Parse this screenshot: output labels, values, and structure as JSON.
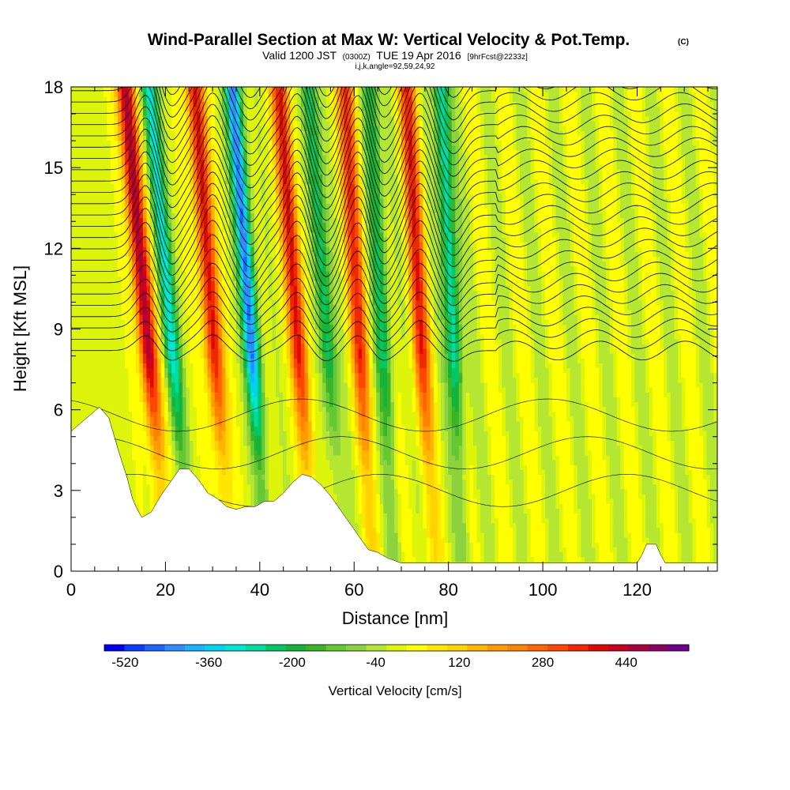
{
  "chart_data": {
    "type": "heatmap",
    "title": "Wind-Parallel Section at Max W: Vertical Velocity & Pot.Temp.",
    "title_mark": "(C)",
    "subtitle_valid": "Valid 1200 JST",
    "subtitle_z": "(0300Z)",
    "subtitle_date": "TUE 19 Apr 2016",
    "subtitle_fcst": "[9hrFcst@2233z]",
    "subtitle_line2": "i,j,k,angle=92,59,24,92",
    "xlabel": "Distance [nm]",
    "ylabel": "Height [Kft MSL]",
    "xlim": [
      0,
      137
    ],
    "ylim": [
      0,
      18
    ],
    "x_ticks": [
      0,
      20,
      40,
      60,
      80,
      100,
      120
    ],
    "x_tick_labels": [
      "0",
      "20",
      "40",
      "60",
      "80",
      "100",
      "120"
    ],
    "y_ticks": [
      0,
      3,
      6,
      9,
      12,
      15,
      18
    ],
    "y_tick_labels": [
      "0",
      "3",
      "6",
      "9",
      "12",
      "15",
      "18"
    ],
    "colorbar": {
      "label": "Vertical Velocity [cm/s]",
      "min": -560,
      "max": 560,
      "step": 40,
      "tick_values": [
        -520,
        -360,
        -200,
        -40,
        120,
        280,
        440
      ],
      "tick_labels": [
        "-520",
        "-360",
        "-200",
        "-40",
        "120",
        "280",
        "440"
      ],
      "colors": [
        "#0000ee",
        "#0a3cff",
        "#1e64ff",
        "#2d8cff",
        "#19b4ff",
        "#00d2f0",
        "#00e6d2",
        "#00dca0",
        "#00c864",
        "#14b43c",
        "#3cb428",
        "#64c832",
        "#8cd23c",
        "#b4e632",
        "#dcf50a",
        "#ffff00",
        "#ffe600",
        "#ffd200",
        "#ffb400",
        "#ff9b00",
        "#ff8200",
        "#ff6400",
        "#ff4600",
        "#f02800",
        "#dc0a00",
        "#c8001e",
        "#aa0040",
        "#8c0064",
        "#6e008c"
      ]
    },
    "series": [
      {
        "kind": "updraft",
        "x_nm": 16,
        "peak_cm_s": 480,
        "top_kft": 18
      },
      {
        "kind": "downdraft",
        "x_nm": 21,
        "peak_cm_s": -330,
        "top_kft": 18
      },
      {
        "kind": "updraft",
        "x_nm": 30,
        "peak_cm_s": 400,
        "top_kft": 18
      },
      {
        "kind": "downdraft",
        "x_nm": 38,
        "peak_cm_s": -470,
        "top_kft": 18
      },
      {
        "kind": "updraft",
        "x_nm": 48,
        "peak_cm_s": 380,
        "top_kft": 18
      },
      {
        "kind": "downdraft",
        "x_nm": 54,
        "peak_cm_s": -260,
        "top_kft": 18
      },
      {
        "kind": "updraft",
        "x_nm": 61,
        "peak_cm_s": 340,
        "top_kft": 18
      },
      {
        "kind": "downdraft",
        "x_nm": 66,
        "peak_cm_s": -250,
        "top_kft": 18
      },
      {
        "kind": "updraft",
        "x_nm": 74,
        "peak_cm_s": 340,
        "top_kft": 18
      },
      {
        "kind": "downdraft",
        "x_nm": 81,
        "peak_cm_s": -330,
        "top_kft": 18
      }
    ],
    "terrain_kft": [
      [
        0,
        5.2
      ],
      [
        2,
        5.5
      ],
      [
        4,
        5.8
      ],
      [
        6,
        6.1
      ],
      [
        8,
        5.7
      ],
      [
        10,
        4.5
      ],
      [
        12,
        3.4
      ],
      [
        13,
        2.7
      ],
      [
        14,
        2.3
      ],
      [
        15,
        2.0
      ],
      [
        17,
        2.2
      ],
      [
        19,
        2.8
      ],
      [
        21,
        3.3
      ],
      [
        23,
        3.8
      ],
      [
        25,
        3.8
      ],
      [
        27,
        3.4
      ],
      [
        29,
        2.9
      ],
      [
        31,
        2.7
      ],
      [
        33,
        2.4
      ],
      [
        35,
        2.3
      ],
      [
        37,
        2.4
      ],
      [
        39,
        2.4
      ],
      [
        41,
        2.6
      ],
      [
        43,
        2.6
      ],
      [
        45,
        2.9
      ],
      [
        47,
        3.3
      ],
      [
        49,
        3.6
      ],
      [
        51,
        3.5
      ],
      [
        53,
        3.2
      ],
      [
        55,
        2.8
      ],
      [
        57,
        2.3
      ],
      [
        59,
        1.8
      ],
      [
        61,
        1.3
      ],
      [
        63,
        0.8
      ],
      [
        65,
        0.7
      ],
      [
        67,
        0.5
      ],
      [
        70,
        0.3
      ],
      [
        74,
        0.3
      ],
      [
        80,
        0.3
      ],
      [
        90,
        0.3
      ],
      [
        100,
        0.3
      ],
      [
        110,
        0.3
      ],
      [
        120,
        0.3
      ],
      [
        121,
        0.6
      ],
      [
        122,
        1.0
      ],
      [
        124,
        1.0
      ],
      [
        125,
        0.6
      ],
      [
        126,
        0.3
      ],
      [
        137,
        0.3
      ]
    ]
  }
}
